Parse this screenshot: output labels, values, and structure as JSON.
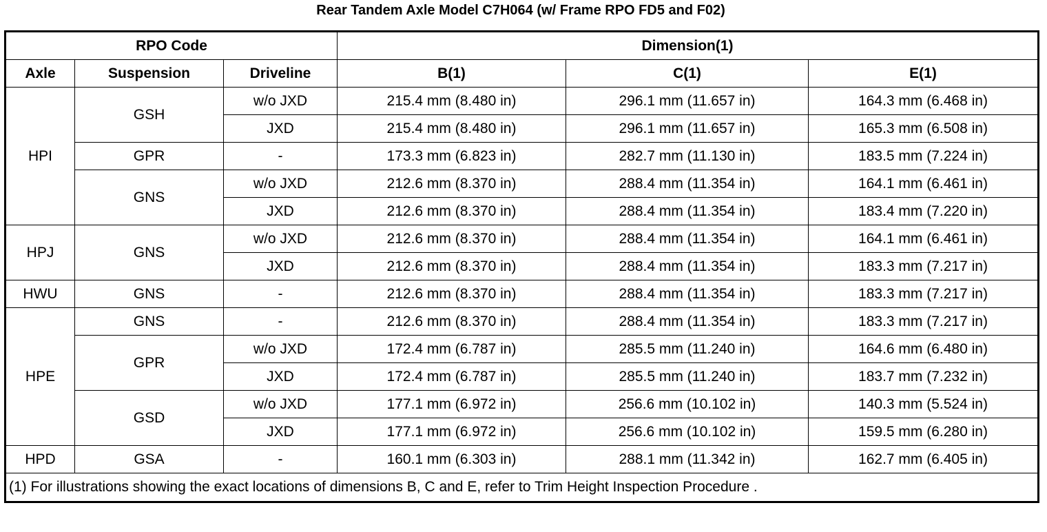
{
  "title": "Rear Tandem Axle Model C7H064 (w/ Frame RPO FD5 and F02)",
  "table": {
    "group_headers": [
      "RPO Code",
      "Dimension(1)"
    ],
    "headers": [
      "Axle",
      "Suspension",
      "Driveline",
      "B(1)",
      "C(1)",
      "E(1)"
    ],
    "axles": [
      {
        "axle": "HPI",
        "suspensions": [
          {
            "name": "GSH",
            "drivelines": [
              {
                "driveline": "w/o JXD",
                "b": "215.4 mm (8.480 in)",
                "c": "296.1 mm (11.657 in)",
                "e": "164.3 mm (6.468 in)"
              },
              {
                "driveline": "JXD",
                "b": "215.4 mm (8.480 in)",
                "c": "296.1 mm (11.657 in)",
                "e": "165.3 mm (6.508 in)"
              }
            ]
          },
          {
            "name": "GPR",
            "drivelines": [
              {
                "driveline": "-",
                "b": "173.3 mm (6.823 in)",
                "c": "282.7 mm (11.130 in)",
                "e": "183.5 mm (7.224 in)"
              }
            ]
          },
          {
            "name": "GNS",
            "drivelines": [
              {
                "driveline": "w/o JXD",
                "b": "212.6 mm (8.370 in)",
                "c": "288.4 mm (11.354 in)",
                "e": "164.1 mm (6.461 in)"
              },
              {
                "driveline": "JXD",
                "b": "212.6 mm (8.370 in)",
                "c": "288.4 mm (11.354 in)",
                "e": "183.4 mm (7.220 in)"
              }
            ]
          }
        ]
      },
      {
        "axle": "HPJ",
        "suspensions": [
          {
            "name": "GNS",
            "drivelines": [
              {
                "driveline": "w/o JXD",
                "b": "212.6 mm (8.370 in)",
                "c": "288.4 mm (11.354 in)",
                "e": "164.1 mm (6.461 in)"
              },
              {
                "driveline": "JXD",
                "b": "212.6 mm (8.370 in)",
                "c": "288.4 mm (11.354 in)",
                "e": "183.3 mm (7.217 in)"
              }
            ]
          }
        ]
      },
      {
        "axle": "HWU",
        "suspensions": [
          {
            "name": "GNS",
            "drivelines": [
              {
                "driveline": "-",
                "b": "212.6 mm (8.370 in)",
                "c": "288.4 mm (11.354 in)",
                "e": "183.3 mm (7.217 in)"
              }
            ]
          }
        ]
      },
      {
        "axle": "HPE",
        "suspensions": [
          {
            "name": "GNS",
            "drivelines": [
              {
                "driveline": "-",
                "b": "212.6 mm (8.370 in)",
                "c": "288.4 mm (11.354 in)",
                "e": "183.3 mm (7.217 in)"
              }
            ]
          },
          {
            "name": "GPR",
            "drivelines": [
              {
                "driveline": "w/o JXD",
                "b": "172.4 mm (6.787 in)",
                "c": "285.5 mm (11.240 in)",
                "e": "164.6 mm (6.480 in)"
              },
              {
                "driveline": "JXD",
                "b": "172.4 mm (6.787 in)",
                "c": "285.5 mm (11.240 in)",
                "e": "183.7 mm (7.232 in)"
              }
            ]
          },
          {
            "name": "GSD",
            "drivelines": [
              {
                "driveline": "w/o JXD",
                "b": "177.1 mm (6.972 in)",
                "c": "256.6 mm (10.102 in)",
                "e": "140.3 mm (5.524 in)"
              },
              {
                "driveline": "JXD",
                "b": "177.1 mm (6.972 in)",
                "c": "256.6 mm (10.102 in)",
                "e": "159.5 mm (6.280 in)"
              }
            ]
          }
        ]
      },
      {
        "axle": "HPD",
        "suspensions": [
          {
            "name": "GSA",
            "drivelines": [
              {
                "driveline": "-",
                "b": "160.1 mm (6.303 in)",
                "c": "288.1 mm (11.342 in)",
                "e": "162.7 mm (6.405 in)"
              }
            ]
          }
        ]
      }
    ],
    "footnote": "(1) For illustrations showing the exact locations of dimensions B, C and E, refer to Trim Height Inspection Procedure ."
  }
}
